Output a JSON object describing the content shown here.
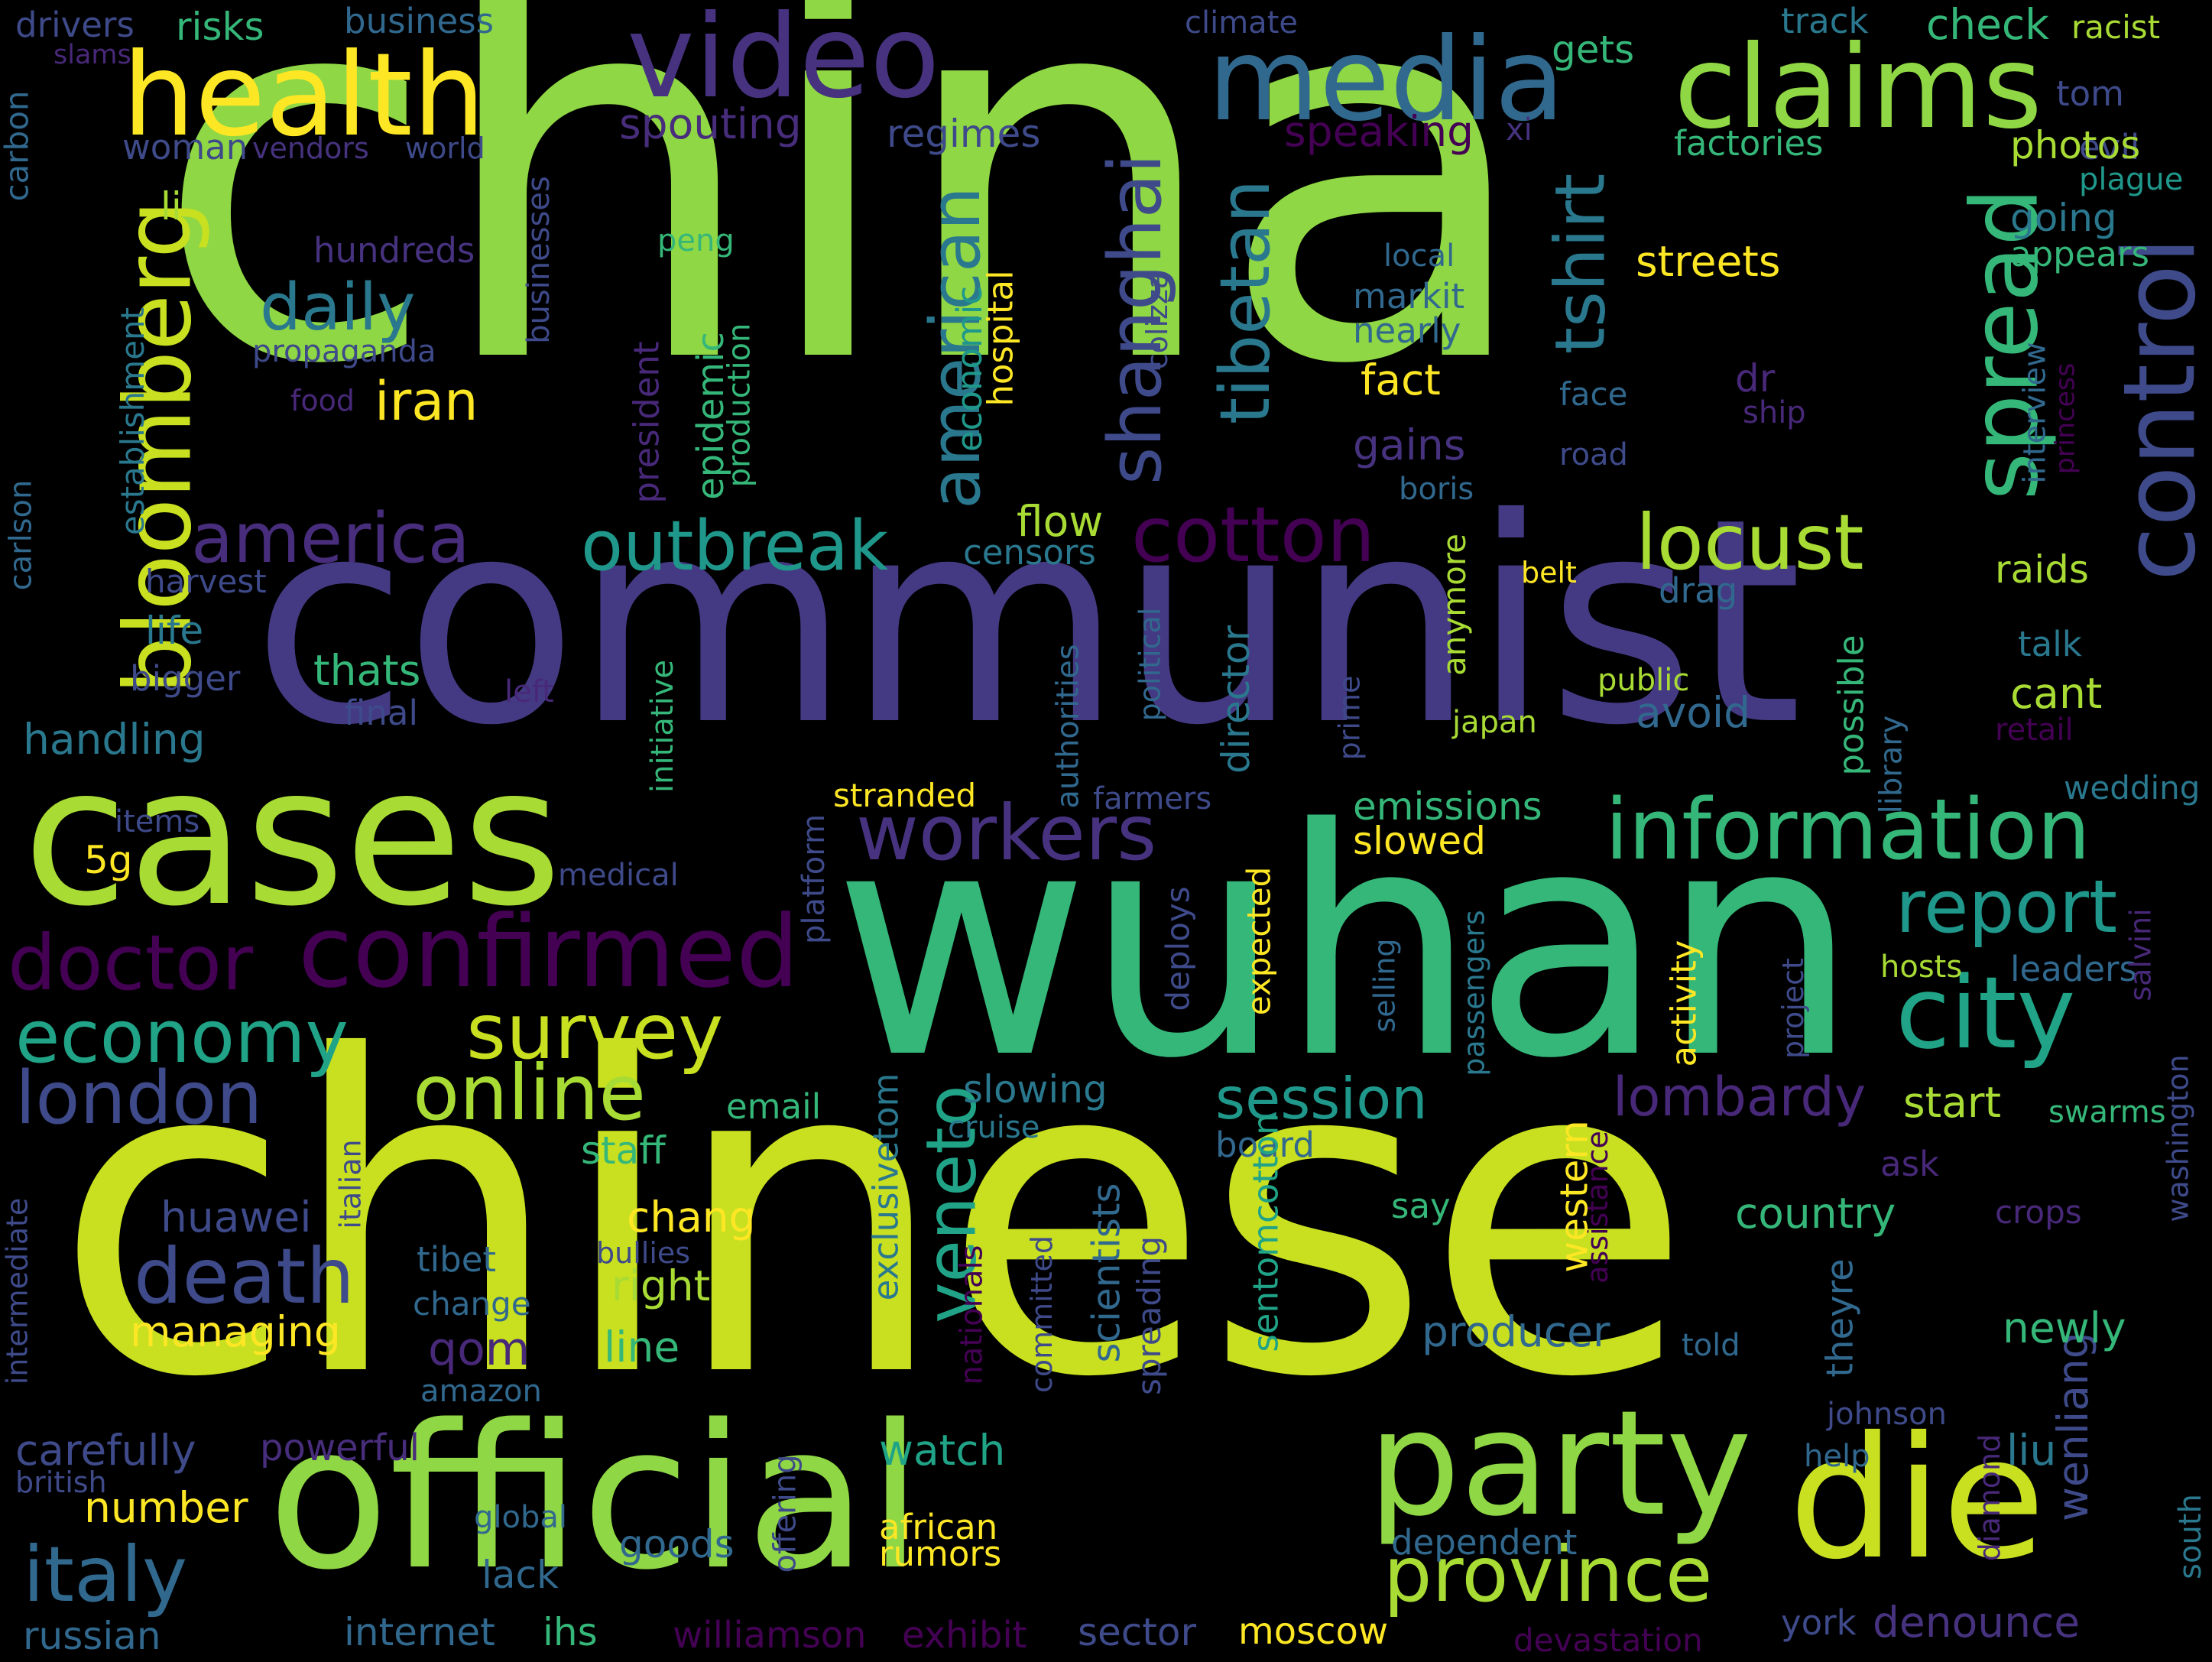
{
  "words": [
    {
      "text": "china",
      "color": "#8fd744"
    },
    {
      "text": "communist",
      "color": "#443a83"
    },
    {
      "text": "chinese",
      "color": "#c8e020"
    },
    {
      "text": "wuhan",
      "color": "#35b779"
    },
    {
      "text": "cases",
      "color": "#a8db34"
    },
    {
      "text": "official",
      "color": "#8fd744"
    },
    {
      "text": "die",
      "color": "#c8e020"
    },
    {
      "text": "party",
      "color": "#8fd744"
    },
    {
      "text": "health",
      "color": "#fde725"
    },
    {
      "text": "video",
      "color": "#46327e"
    },
    {
      "text": "media",
      "color": "#31688e"
    },
    {
      "text": "claims",
      "color": "#8fd744"
    },
    {
      "text": "bloomberg",
      "color": "#c8e020"
    },
    {
      "text": "control",
      "color": "#3e4a89"
    },
    {
      "text": "spread",
      "color": "#35b779"
    },
    {
      "text": "information",
      "color": "#35b779"
    },
    {
      "text": "city",
      "color": "#20a386"
    },
    {
      "text": "confirmed",
      "color": "#440154"
    },
    {
      "text": "doctor",
      "color": "#440154"
    },
    {
      "text": "province",
      "color": "#a8db34"
    },
    {
      "text": "italy",
      "color": "#31688e"
    },
    {
      "text": "survey",
      "color": "#c8e020"
    },
    {
      "text": "online",
      "color": "#a8db34"
    },
    {
      "text": "economy",
      "color": "#20a386"
    },
    {
      "text": "london",
      "color": "#3e4a89"
    },
    {
      "text": "america",
      "color": "#472d7b"
    },
    {
      "text": "outbreak",
      "color": "#1f988b"
    },
    {
      "text": "cotton",
      "color": "#440154"
    },
    {
      "text": "locust",
      "color": "#a8db34"
    },
    {
      "text": "report",
      "color": "#1f988b"
    },
    {
      "text": "workers",
      "color": "#46327e"
    },
    {
      "text": "death",
      "color": "#3e4a89"
    },
    {
      "text": "shanghai",
      "color": "#3e4a89"
    },
    {
      "text": "tibetan",
      "color": "#2a788e"
    },
    {
      "text": "american",
      "color": "#2a788e"
    },
    {
      "text": "tshirt",
      "color": "#2a788e"
    },
    {
      "text": "daily",
      "color": "#2a788e"
    },
    {
      "text": "iran",
      "color": "#fde725"
    },
    {
      "text": "veneto",
      "color": "#20a386"
    },
    {
      "text": "session",
      "color": "#1f988b"
    },
    {
      "text": "lombardy",
      "color": "#482878"
    },
    {
      "text": "streets",
      "color": "#fde725"
    },
    {
      "text": "fact",
      "color": "#fde725"
    },
    {
      "text": "gains",
      "color": "#46327e"
    },
    {
      "text": "huawei",
      "color": "#3e4a89"
    },
    {
      "text": "managing",
      "color": "#fde725"
    },
    {
      "text": "carefully",
      "color": "#3e4a89"
    },
    {
      "text": "number",
      "color": "#fde725"
    },
    {
      "text": "russian",
      "color": "#31688e"
    },
    {
      "text": "internet",
      "color": "#31688e"
    },
    {
      "text": "ihs",
      "color": "#35b779"
    },
    {
      "text": "williamson",
      "color": "#440154"
    },
    {
      "text": "exhibit",
      "color": "#440154"
    },
    {
      "text": "sector",
      "color": "#3e4a89"
    },
    {
      "text": "moscow",
      "color": "#fde725"
    },
    {
      "text": "devastation",
      "color": "#440154"
    },
    {
      "text": "denounce",
      "color": "#46327e"
    },
    {
      "text": "york",
      "color": "#3e4a89"
    },
    {
      "text": "wenliang",
      "color": "#3e4a89"
    },
    {
      "text": "liu",
      "color": "#2a788e"
    },
    {
      "text": "newly",
      "color": "#35b779"
    },
    {
      "text": "country",
      "color": "#35b779"
    },
    {
      "text": "start",
      "color": "#a8db34"
    },
    {
      "text": "producer",
      "color": "#31688e"
    },
    {
      "text": "right",
      "color": "#a8db34"
    },
    {
      "text": "line",
      "color": "#35b779"
    },
    {
      "text": "chang",
      "color": "#fde725"
    },
    {
      "text": "staff",
      "color": "#35b779"
    },
    {
      "text": "watch",
      "color": "#20a386"
    },
    {
      "text": "goods",
      "color": "#31688e"
    },
    {
      "text": "lack",
      "color": "#31688e"
    },
    {
      "text": "african",
      "color": "#fde725"
    },
    {
      "text": "rumors",
      "color": "#fde725"
    },
    {
      "text": "dependent",
      "color": "#31688e"
    },
    {
      "text": "help",
      "color": "#31688e"
    },
    {
      "text": "johnson",
      "color": "#3e4a89"
    },
    {
      "text": "told",
      "color": "#31688e"
    },
    {
      "text": "say",
      "color": "#35b779"
    },
    {
      "text": "crops",
      "color": "#482878"
    },
    {
      "text": "swarms",
      "color": "#35b779"
    },
    {
      "text": "ask",
      "color": "#482878"
    },
    {
      "text": "avoid",
      "color": "#31688e"
    },
    {
      "text": "cant",
      "color": "#a8db34"
    },
    {
      "text": "talk",
      "color": "#2a788e"
    },
    {
      "text": "raids",
      "color": "#a8db34"
    },
    {
      "text": "public",
      "color": "#a8db34"
    },
    {
      "text": "japan",
      "color": "#a8db34"
    },
    {
      "text": "belt",
      "color": "#fde725"
    },
    {
      "text": "drag",
      "color": "#31688e"
    },
    {
      "text": "flow",
      "color": "#a8db34"
    },
    {
      "text": "censors",
      "color": "#2a788e"
    },
    {
      "text": "emissions",
      "color": "#35b779"
    },
    {
      "text": "slowed",
      "color": "#fde725"
    },
    {
      "text": "slowing",
      "color": "#2a788e"
    },
    {
      "text": "cruise",
      "color": "#2a788e"
    },
    {
      "text": "email",
      "color": "#35b779"
    },
    {
      "text": "board",
      "color": "#31688e"
    },
    {
      "text": "hosts",
      "color": "#a8db34"
    },
    {
      "text": "leaders",
      "color": "#31688e"
    },
    {
      "text": "stranded",
      "color": "#fde725"
    },
    {
      "text": "farmers",
      "color": "#3e4a89"
    },
    {
      "text": "medical",
      "color": "#3e4a89"
    },
    {
      "text": "items",
      "color": "#3e4a89"
    },
    {
      "text": "5g",
      "color": "#fde725"
    },
    {
      "text": "handling",
      "color": "#2a788e"
    },
    {
      "text": "bigger",
      "color": "#3e4a89"
    },
    {
      "text": "thats",
      "color": "#35b779"
    },
    {
      "text": "final",
      "color": "#3e4a89"
    },
    {
      "text": "left",
      "color": "#482878"
    },
    {
      "text": "life",
      "color": "#2a788e"
    },
    {
      "text": "harvest",
      "color": "#3e4a89"
    },
    {
      "text": "drivers",
      "color": "#3e4a89"
    },
    {
      "text": "risks",
      "color": "#35b779"
    },
    {
      "text": "business",
      "color": "#31688e"
    },
    {
      "text": "climate",
      "color": "#3e4a89"
    },
    {
      "text": "track",
      "color": "#2a788e"
    },
    {
      "text": "check",
      "color": "#35b779"
    },
    {
      "text": "racist",
      "color": "#a8db34"
    },
    {
      "text": "tom",
      "color": "#3e4a89"
    },
    {
      "text": "evil",
      "color": "#3e4a89"
    },
    {
      "text": "photos",
      "color": "#a8db34"
    },
    {
      "text": "plague",
      "color": "#1f988b"
    },
    {
      "text": "going",
      "color": "#2a788e"
    },
    {
      "text": "appears",
      "color": "#35b779"
    },
    {
      "text": "gets",
      "color": "#35b779"
    },
    {
      "text": "factories",
      "color": "#35b779"
    },
    {
      "text": "speaking",
      "color": "#440154"
    },
    {
      "text": "xi",
      "color": "#46327e"
    },
    {
      "text": "spouting",
      "color": "#472d7b"
    },
    {
      "text": "regimes",
      "color": "#3e4a89"
    },
    {
      "text": "woman",
      "color": "#3e4a89"
    },
    {
      "text": "vendors",
      "color": "#46327e"
    },
    {
      "text": "world",
      "color": "#3e4a89"
    },
    {
      "text": "slams",
      "color": "#482878"
    },
    {
      "text": "li",
      "color": "#a8db34"
    },
    {
      "text": "hundreds",
      "color": "#46327e"
    },
    {
      "text": "peng",
      "color": "#35b779"
    },
    {
      "text": "propaganda",
      "color": "#3e4a89"
    },
    {
      "text": "food",
      "color": "#482878"
    },
    {
      "text": "local",
      "color": "#31688e"
    },
    {
      "text": "markit",
      "color": "#31688e"
    },
    {
      "text": "nearly",
      "color": "#31688e"
    },
    {
      "text": "dr",
      "color": "#482878"
    },
    {
      "text": "face",
      "color": "#31688e"
    },
    {
      "text": "ship",
      "color": "#482878"
    },
    {
      "text": "road",
      "color": "#3e4a89"
    },
    {
      "text": "boris",
      "color": "#31688e"
    },
    {
      "text": "wedding",
      "color": "#2a788e"
    },
    {
      "text": "retail",
      "color": "#440154"
    },
    {
      "text": "amazon",
      "color": "#31688e"
    },
    {
      "text": "change",
      "color": "#31688e"
    },
    {
      "text": "bullies",
      "color": "#3e4a89"
    },
    {
      "text": "tibet",
      "color": "#31688e"
    },
    {
      "text": "powerful",
      "color": "#472d7b"
    },
    {
      "text": "british",
      "color": "#3e4a89"
    },
    {
      "text": "global",
      "color": "#31688e"
    },
    {
      "text": "qom",
      "color": "#482878"
    },
    {
      "text": "carbon",
      "color": "#31688e"
    },
    {
      "text": "establishment",
      "color": "#2a788e"
    },
    {
      "text": "carlson",
      "color": "#31688e"
    },
    {
      "text": "businesses",
      "color": "#3e4a89"
    },
    {
      "text": "president",
      "color": "#482878"
    },
    {
      "text": "epidemic",
      "color": "#35b779"
    },
    {
      "text": "production",
      "color": "#35b779"
    },
    {
      "text": "economic",
      "color": "#1f988b"
    },
    {
      "text": "hospital",
      "color": "#fde725"
    },
    {
      "text": "colizza",
      "color": "#3e4a89"
    },
    {
      "text": "interview",
      "color": "#31688e"
    },
    {
      "text": "princess",
      "color": "#440154"
    },
    {
      "text": "anymore",
      "color": "#a8db34"
    },
    {
      "text": "director",
      "color": "#2a788e"
    },
    {
      "text": "expected",
      "color": "#fde725"
    },
    {
      "text": "deploys",
      "color": "#3e4a89"
    },
    {
      "text": "initiative",
      "color": "#35b779"
    },
    {
      "text": "authorities",
      "color": "#31688e"
    },
    {
      "text": "political",
      "color": "#31688e"
    },
    {
      "text": "prime",
      "color": "#3e4a89"
    },
    {
      "text": "platform",
      "color": "#3e4a89"
    },
    {
      "text": "possible",
      "color": "#35b779"
    },
    {
      "text": "library",
      "color": "#31688e"
    },
    {
      "text": "activity",
      "color": "#fde725"
    },
    {
      "text": "selling",
      "color": "#31688e"
    },
    {
      "text": "passengers",
      "color": "#2a788e"
    },
    {
      "text": "project",
      "color": "#3e4a89"
    },
    {
      "text": "salvini",
      "color": "#482878"
    },
    {
      "text": "washington",
      "color": "#3e4a89"
    },
    {
      "text": "assistance",
      "color": "#440154"
    },
    {
      "text": "italian",
      "color": "#3e4a89"
    },
    {
      "text": "intermediate",
      "color": "#3e4a89"
    },
    {
      "text": "exclusivetom",
      "color": "#2a788e"
    },
    {
      "text": "nationals",
      "color": "#440154"
    },
    {
      "text": "committed",
      "color": "#3e4a89"
    },
    {
      "text": "scientists",
      "color": "#31688e"
    },
    {
      "text": "spreading",
      "color": "#3e4a89"
    },
    {
      "text": "sentomcotton",
      "color": "#20a386"
    },
    {
      "text": "western",
      "color": "#fde725"
    },
    {
      "text": "theyre",
      "color": "#31688e"
    },
    {
      "text": "offering",
      "color": "#3e4a89"
    },
    {
      "text": "diamond",
      "color": "#482878"
    },
    {
      "text": "south",
      "color": "#2a788e"
    }
  ]
}
